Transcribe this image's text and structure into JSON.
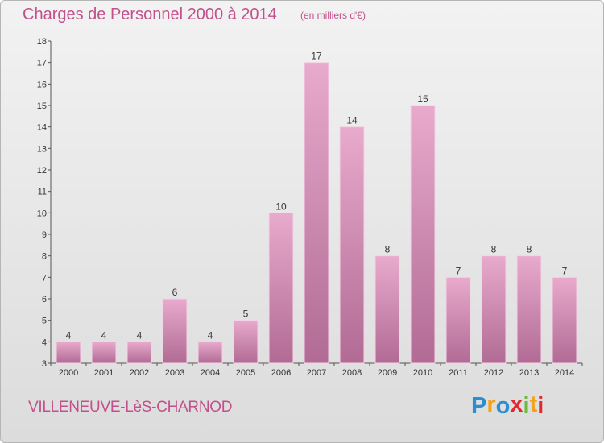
{
  "title": "Charges de Personnel 2000 à 2014",
  "subtitle": "(en milliers d'€)",
  "commune": "VILLENEUVE-LèS-CHARNOD",
  "logo": {
    "letters": [
      "P",
      "r",
      "o",
      "x",
      "i",
      "t",
      "i"
    ],
    "colors": [
      "#2a8fd0",
      "#f0a21c",
      "#2a8fd0",
      "#e0282e",
      "#6cb83a",
      "#f0a21c",
      "#e0282e"
    ]
  },
  "colors": {
    "bar_top": "#e8aacd",
    "bar_bottom": "#b16b94",
    "title": "#c2508a"
  },
  "chart_data": {
    "type": "bar",
    "categories": [
      "2000",
      "2001",
      "2002",
      "2003",
      "2004",
      "2005",
      "2006",
      "2007",
      "2008",
      "2009",
      "2010",
      "2011",
      "2012",
      "2013",
      "2014"
    ],
    "values": [
      4,
      4,
      4,
      6,
      4,
      5,
      10,
      17,
      14,
      8,
      15,
      7,
      8,
      8,
      7
    ],
    "ylim": [
      3,
      18
    ],
    "yticks": [
      3,
      4,
      5,
      6,
      7,
      8,
      9,
      10,
      11,
      12,
      13,
      14,
      15,
      16,
      17,
      18
    ],
    "grid": false,
    "legend": "none"
  }
}
